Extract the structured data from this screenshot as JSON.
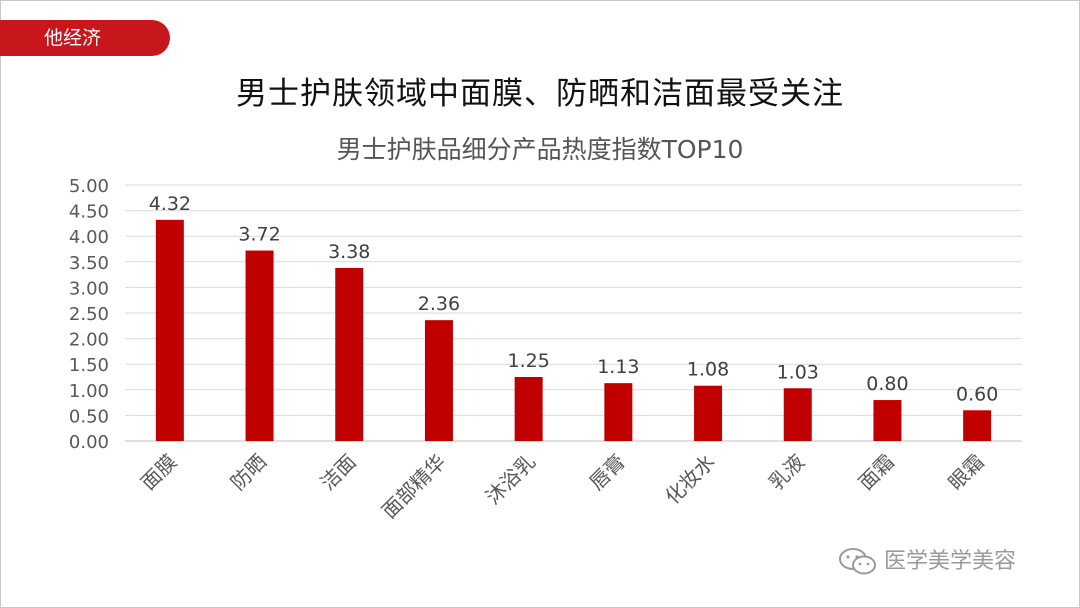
{
  "tag": {
    "label": "他经济"
  },
  "headline": "男士护肤领域中面膜、防晒和洁面最受关注",
  "watermark": {
    "text": "医学美学美容",
    "icon": "wechat-icon"
  },
  "colors": {
    "bar": "#c00000",
    "tag": "#c8161d",
    "grid": "#d9d9d9",
    "axis_text": "#595959"
  },
  "chart_data": {
    "type": "bar",
    "title": "男士护肤品细分产品热度指数TOP10",
    "xlabel": "",
    "ylabel": "",
    "categories": [
      "面膜",
      "防晒",
      "洁面",
      "面部精华",
      "沐浴乳",
      "唇膏",
      "化妆水",
      "乳液",
      "面霜",
      "眼霜"
    ],
    "values": [
      4.32,
      3.72,
      3.38,
      2.36,
      1.25,
      1.13,
      1.08,
      1.03,
      0.8,
      0.6
    ],
    "data_labels": [
      "4.32",
      "3.72",
      "3.38",
      "2.36",
      "1.25",
      "1.13",
      "1.08",
      "1.03",
      "0.80",
      "0.60"
    ],
    "ylim": [
      0,
      5
    ],
    "yticks": [
      "0.00",
      "0.50",
      "1.00",
      "1.50",
      "2.00",
      "2.50",
      "3.00",
      "3.50",
      "4.00",
      "4.50",
      "5.00"
    ],
    "grid": true,
    "legend": "none",
    "x_tick_rotation_deg": -45
  }
}
